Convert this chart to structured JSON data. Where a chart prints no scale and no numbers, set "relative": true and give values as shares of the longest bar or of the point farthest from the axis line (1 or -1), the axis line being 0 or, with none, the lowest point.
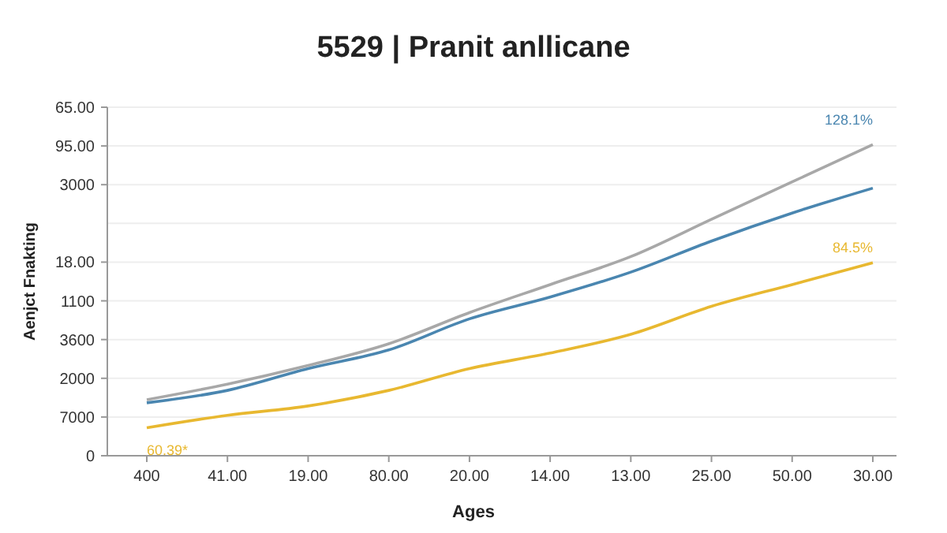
{
  "chart_data": {
    "type": "line",
    "title": "5529 | Pranit anllicane",
    "xlabel": "Ages",
    "ylabel": "Aenjct Fnakting",
    "categories": [
      "400",
      "41.00",
      "19.00",
      "80.00",
      "20.00",
      "14.00",
      "13.00",
      "25.00",
      "50.00",
      "30.00"
    ],
    "y_categories": [
      "65.00",
      "95.00",
      "3000",
      null,
      "18.00",
      "1100",
      "3600",
      "2000",
      "7000",
      "0"
    ],
    "relative": true,
    "grid": "y",
    "marker": "none",
    "line_style": "solid",
    "series": [
      {
        "color": "#a8a8a8",
        "values": [
          0.18,
          0.23,
          0.29,
          0.36,
          0.46,
          0.55,
          0.64,
          0.76,
          0.88,
          1
        ]
      },
      {
        "color": "#4a86b0",
        "values": [
          0.17,
          0.21,
          0.28,
          0.34,
          0.44,
          0.51,
          0.59,
          0.69,
          0.78,
          0.86
        ]
      },
      {
        "color": "#e8b830",
        "values": [
          0.09,
          0.13,
          0.16,
          0.21,
          0.28,
          0.33,
          0.39,
          0.48,
          0.55,
          0.62
        ]
      }
    ],
    "annotations": [
      "128.1%",
      "84.5%",
      "60.39*"
    ]
  }
}
